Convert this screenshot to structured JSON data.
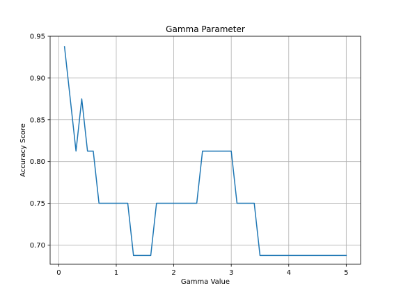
{
  "chart_data": {
    "type": "line",
    "title": "Gamma Parameter",
    "xlabel": "Gamma Value",
    "ylabel": "Accuracy Score",
    "xlim": [
      -0.15,
      5.25
    ],
    "ylim": [
      0.677,
      0.95
    ],
    "x_ticks": [
      0,
      1,
      2,
      3,
      4,
      5
    ],
    "x_tick_labels": [
      "0",
      "1",
      "2",
      "3",
      "4",
      "5"
    ],
    "y_ticks": [
      0.7,
      0.75,
      0.8,
      0.85,
      0.9,
      0.95
    ],
    "y_tick_labels": [
      "0.70",
      "0.75",
      "0.80",
      "0.85",
      "0.90",
      "0.95"
    ],
    "grid": true,
    "series": [
      {
        "color": "#1f77b4",
        "x": [
          0.1,
          0.2,
          0.3,
          0.4,
          0.5,
          0.6,
          0.7,
          0.8,
          0.9,
          1.0,
          1.1,
          1.2,
          1.3,
          1.4,
          1.5,
          1.6,
          1.7,
          1.8,
          1.9,
          2.0,
          2.1,
          2.2,
          2.3,
          2.4,
          2.5,
          2.6,
          2.7,
          2.8,
          2.9,
          3.0,
          3.1,
          3.2,
          3.3,
          3.4,
          3.5,
          3.6,
          3.7,
          3.8,
          3.9,
          4.0,
          4.1,
          4.2,
          4.3,
          4.4,
          4.5,
          4.6,
          4.7,
          4.8,
          4.9,
          5.0
        ],
        "y": [
          0.9375,
          0.875,
          0.8125,
          0.875,
          0.8125,
          0.8125,
          0.75,
          0.75,
          0.75,
          0.75,
          0.75,
          0.75,
          0.6875,
          0.6875,
          0.6875,
          0.6875,
          0.75,
          0.75,
          0.75,
          0.75,
          0.75,
          0.75,
          0.75,
          0.75,
          0.8125,
          0.8125,
          0.8125,
          0.8125,
          0.8125,
          0.8125,
          0.75,
          0.75,
          0.75,
          0.75,
          0.6875,
          0.6875,
          0.6875,
          0.6875,
          0.6875,
          0.6875,
          0.6875,
          0.6875,
          0.6875,
          0.6875,
          0.6875,
          0.6875,
          0.6875,
          0.6875,
          0.6875,
          0.6875
        ]
      }
    ]
  }
}
